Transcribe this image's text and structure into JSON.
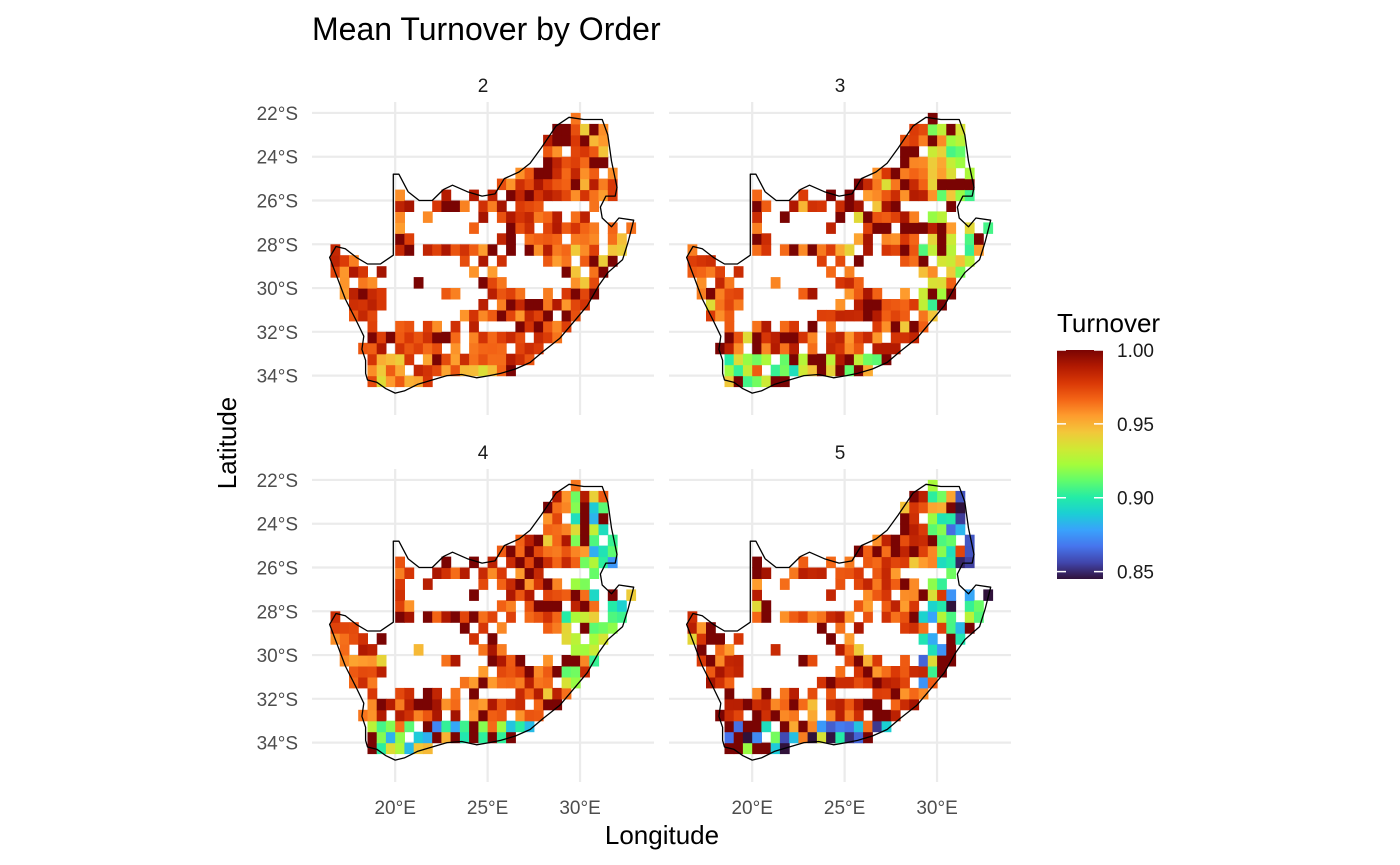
{
  "chart_data": {
    "type": "heatmap",
    "subtype": "faceted choropleth grid map",
    "title": "Mean Turnover by Order",
    "xlabel": "Longitude",
    "ylabel": "Latitude",
    "x_unit": "degrees longitude",
    "y_unit": "degrees latitude",
    "xlim": [
      15.5,
      34.0
    ],
    "ylim": [
      -35.8,
      -21.5
    ],
    "x_ticks": [
      20,
      25,
      30
    ],
    "x_tick_labels": [
      "20°E",
      "25°E",
      "30°E"
    ],
    "y_ticks": [
      -22,
      -24,
      -26,
      -28,
      -30,
      -32,
      -34
    ],
    "y_tick_labels": [
      "22°S",
      "24°S",
      "26°S",
      "28°S",
      "30°S",
      "32°S",
      "34°S"
    ],
    "grid": true,
    "cell_size_degrees": 0.5,
    "legend": {
      "title": "Turnover",
      "position": "right",
      "range": [
        0.845,
        1.0
      ],
      "breaks": [
        1.0,
        0.95,
        0.9,
        0.85
      ],
      "break_labels": [
        "1.00",
        "0.95",
        "0.90",
        "0.85"
      ],
      "palette": [
        "#30123b",
        "#4145ab",
        "#4675ed",
        "#39a2fc",
        "#1bcfd4",
        "#24eca6",
        "#61fc6c",
        "#a4fc3b",
        "#d1e834",
        "#f3c63a",
        "#fe9b2d",
        "#f36315",
        "#d93806",
        "#b11901",
        "#7a0403"
      ]
    },
    "facets": [
      {
        "label": "2",
        "statistic": "mean turnover",
        "typical_range": [
          0.93,
          1.0
        ],
        "visual_mean": 0.975
      },
      {
        "label": "3",
        "statistic": "mean turnover",
        "typical_range": [
          0.89,
          1.0
        ],
        "visual_mean": 0.96
      },
      {
        "label": "4",
        "statistic": "mean turnover",
        "typical_range": [
          0.875,
          1.0
        ],
        "visual_mean": 0.955
      },
      {
        "label": "5",
        "statistic": "mean turnover",
        "typical_range": [
          0.85,
          1.0
        ],
        "visual_mean": 0.95
      }
    ],
    "outline": {
      "name": "",
      "coordinates": [
        [
          16.45,
          -28.6
        ],
        [
          16.8,
          -28.1
        ],
        [
          17.3,
          -28.2
        ],
        [
          17.9,
          -28.6
        ],
        [
          18.5,
          -28.9
        ],
        [
          19.2,
          -28.9
        ],
        [
          19.9,
          -28.5
        ],
        [
          19.9,
          -24.8
        ],
        [
          20.2,
          -24.8
        ],
        [
          20.7,
          -25.6
        ],
        [
          21.3,
          -26.0
        ],
        [
          22.0,
          -26.0
        ],
        [
          22.6,
          -25.5
        ],
        [
          23.1,
          -25.3
        ],
        [
          23.9,
          -25.6
        ],
        [
          24.7,
          -25.8
        ],
        [
          25.4,
          -25.7
        ],
        [
          25.9,
          -25.0
        ],
        [
          26.7,
          -24.7
        ],
        [
          27.3,
          -24.3
        ],
        [
          27.9,
          -23.6
        ],
        [
          28.7,
          -22.6
        ],
        [
          29.4,
          -22.2
        ],
        [
          30.2,
          -22.3
        ],
        [
          31.2,
          -22.3
        ],
        [
          31.5,
          -23.0
        ],
        [
          31.7,
          -24.2
        ],
        [
          32.0,
          -25.4
        ],
        [
          31.9,
          -25.8
        ],
        [
          31.4,
          -25.8
        ],
        [
          31.1,
          -26.3
        ],
        [
          31.2,
          -26.8
        ],
        [
          31.7,
          -27.2
        ],
        [
          32.1,
          -26.8
        ],
        [
          32.9,
          -26.9
        ],
        [
          32.6,
          -27.9
        ],
        [
          32.3,
          -28.7
        ],
        [
          31.5,
          -29.3
        ],
        [
          31.0,
          -29.9
        ],
        [
          30.4,
          -30.8
        ],
        [
          29.7,
          -31.5
        ],
        [
          28.9,
          -32.3
        ],
        [
          28.0,
          -32.9
        ],
        [
          27.3,
          -33.4
        ],
        [
          26.5,
          -33.7
        ],
        [
          25.7,
          -33.9
        ],
        [
          25.1,
          -34.0
        ],
        [
          24.4,
          -34.1
        ],
        [
          23.6,
          -33.95
        ],
        [
          22.8,
          -34.0
        ],
        [
          22.0,
          -34.2
        ],
        [
          21.2,
          -34.4
        ],
        [
          20.5,
          -34.7
        ],
        [
          20.0,
          -34.8
        ],
        [
          19.5,
          -34.6
        ],
        [
          19.0,
          -34.3
        ],
        [
          18.5,
          -34.2
        ],
        [
          18.4,
          -33.9
        ],
        [
          18.4,
          -33.3
        ],
        [
          18.2,
          -32.8
        ],
        [
          18.3,
          -32.2
        ],
        [
          17.9,
          -31.5
        ],
        [
          17.3,
          -30.5
        ],
        [
          16.9,
          -29.6
        ]
      ]
    }
  }
}
